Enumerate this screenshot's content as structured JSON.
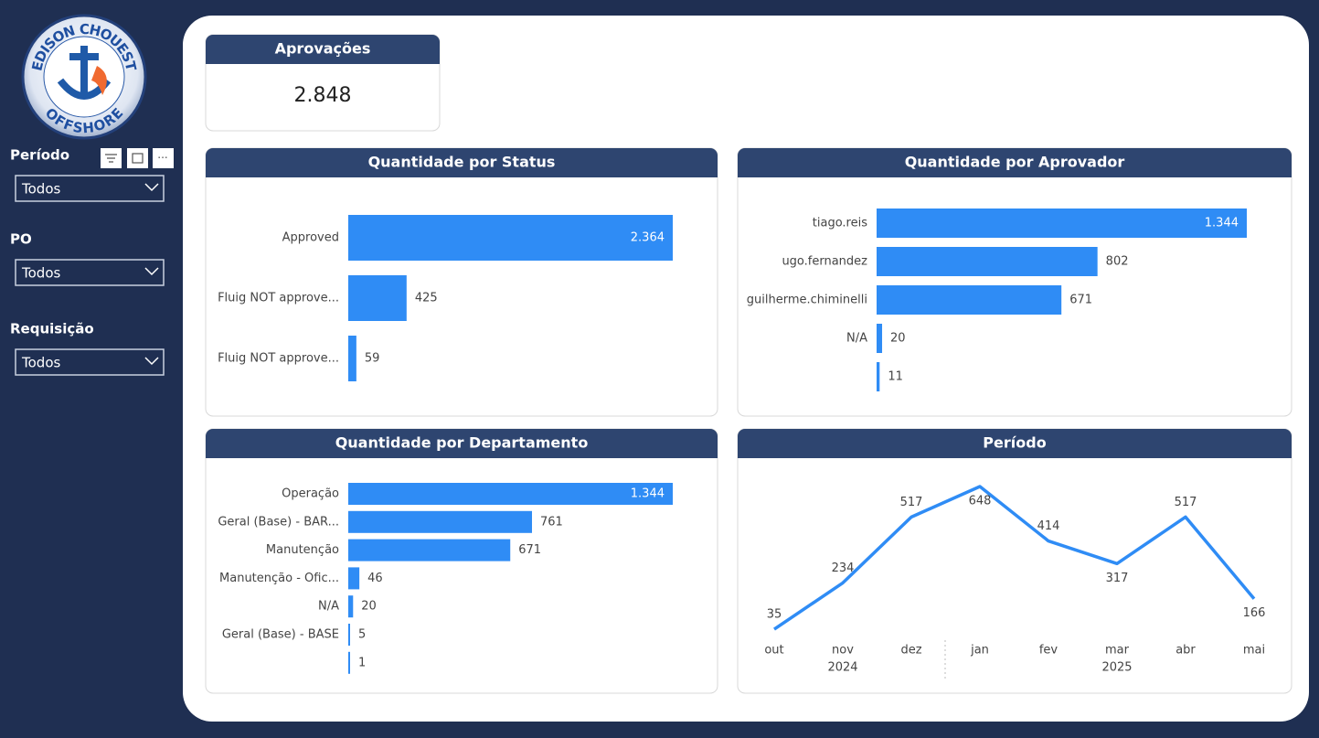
{
  "logo": {
    "top": "EDISON CHOUEST",
    "bottom": "OFFSHORE"
  },
  "filters": [
    {
      "label": "Período",
      "value": "Todos"
    },
    {
      "label": "PO",
      "value": "Todos"
    },
    {
      "label": "Requisição",
      "value": "Todos"
    }
  ],
  "kpi": {
    "title": "Aprovações",
    "value": "2.848"
  },
  "chart_data": [
    {
      "type": "hbar",
      "title": "Quantidade por Status",
      "color": "#2f8cf5",
      "categories": [
        "Approved",
        "Fluig NOT approve...",
        "Fluig NOT approve..."
      ],
      "values": [
        2364,
        425,
        59
      ],
      "value_labels": [
        "2.364",
        "425",
        "59"
      ]
    },
    {
      "type": "hbar",
      "title": "Quantidade por Aprovador",
      "color": "#2f8cf5",
      "categories": [
        "tiago.reis",
        "ugo.fernandez",
        "guilherme.chiminelli",
        "N/A",
        null
      ],
      "values": [
        1344,
        802,
        671,
        20,
        11
      ],
      "value_labels": [
        "1.344",
        "802",
        "671",
        "20",
        "11"
      ]
    },
    {
      "type": "hbar",
      "title": "Quantidade por Departamento",
      "color": "#2f8cf5",
      "categories": [
        "Operação",
        "Geral (Base) - BAR...",
        "Manutenção",
        "Manutenção - Ofic...",
        "N/A",
        "Geral (Base) - BASE",
        null
      ],
      "values": [
        1344,
        761,
        671,
        46,
        20,
        5,
        1
      ],
      "value_labels": [
        "1.344",
        "761",
        "671",
        "46",
        "20",
        "5",
        "1"
      ]
    },
    {
      "type": "line",
      "title": "Período",
      "color": "#2f8cf5",
      "categories": [
        "out",
        "nov",
        "dez",
        "jan",
        "fev",
        "mar",
        "abr",
        "mai"
      ],
      "years": [
        "2024",
        "2025"
      ],
      "values": [
        35,
        234,
        517,
        648,
        414,
        317,
        517,
        166
      ]
    }
  ]
}
